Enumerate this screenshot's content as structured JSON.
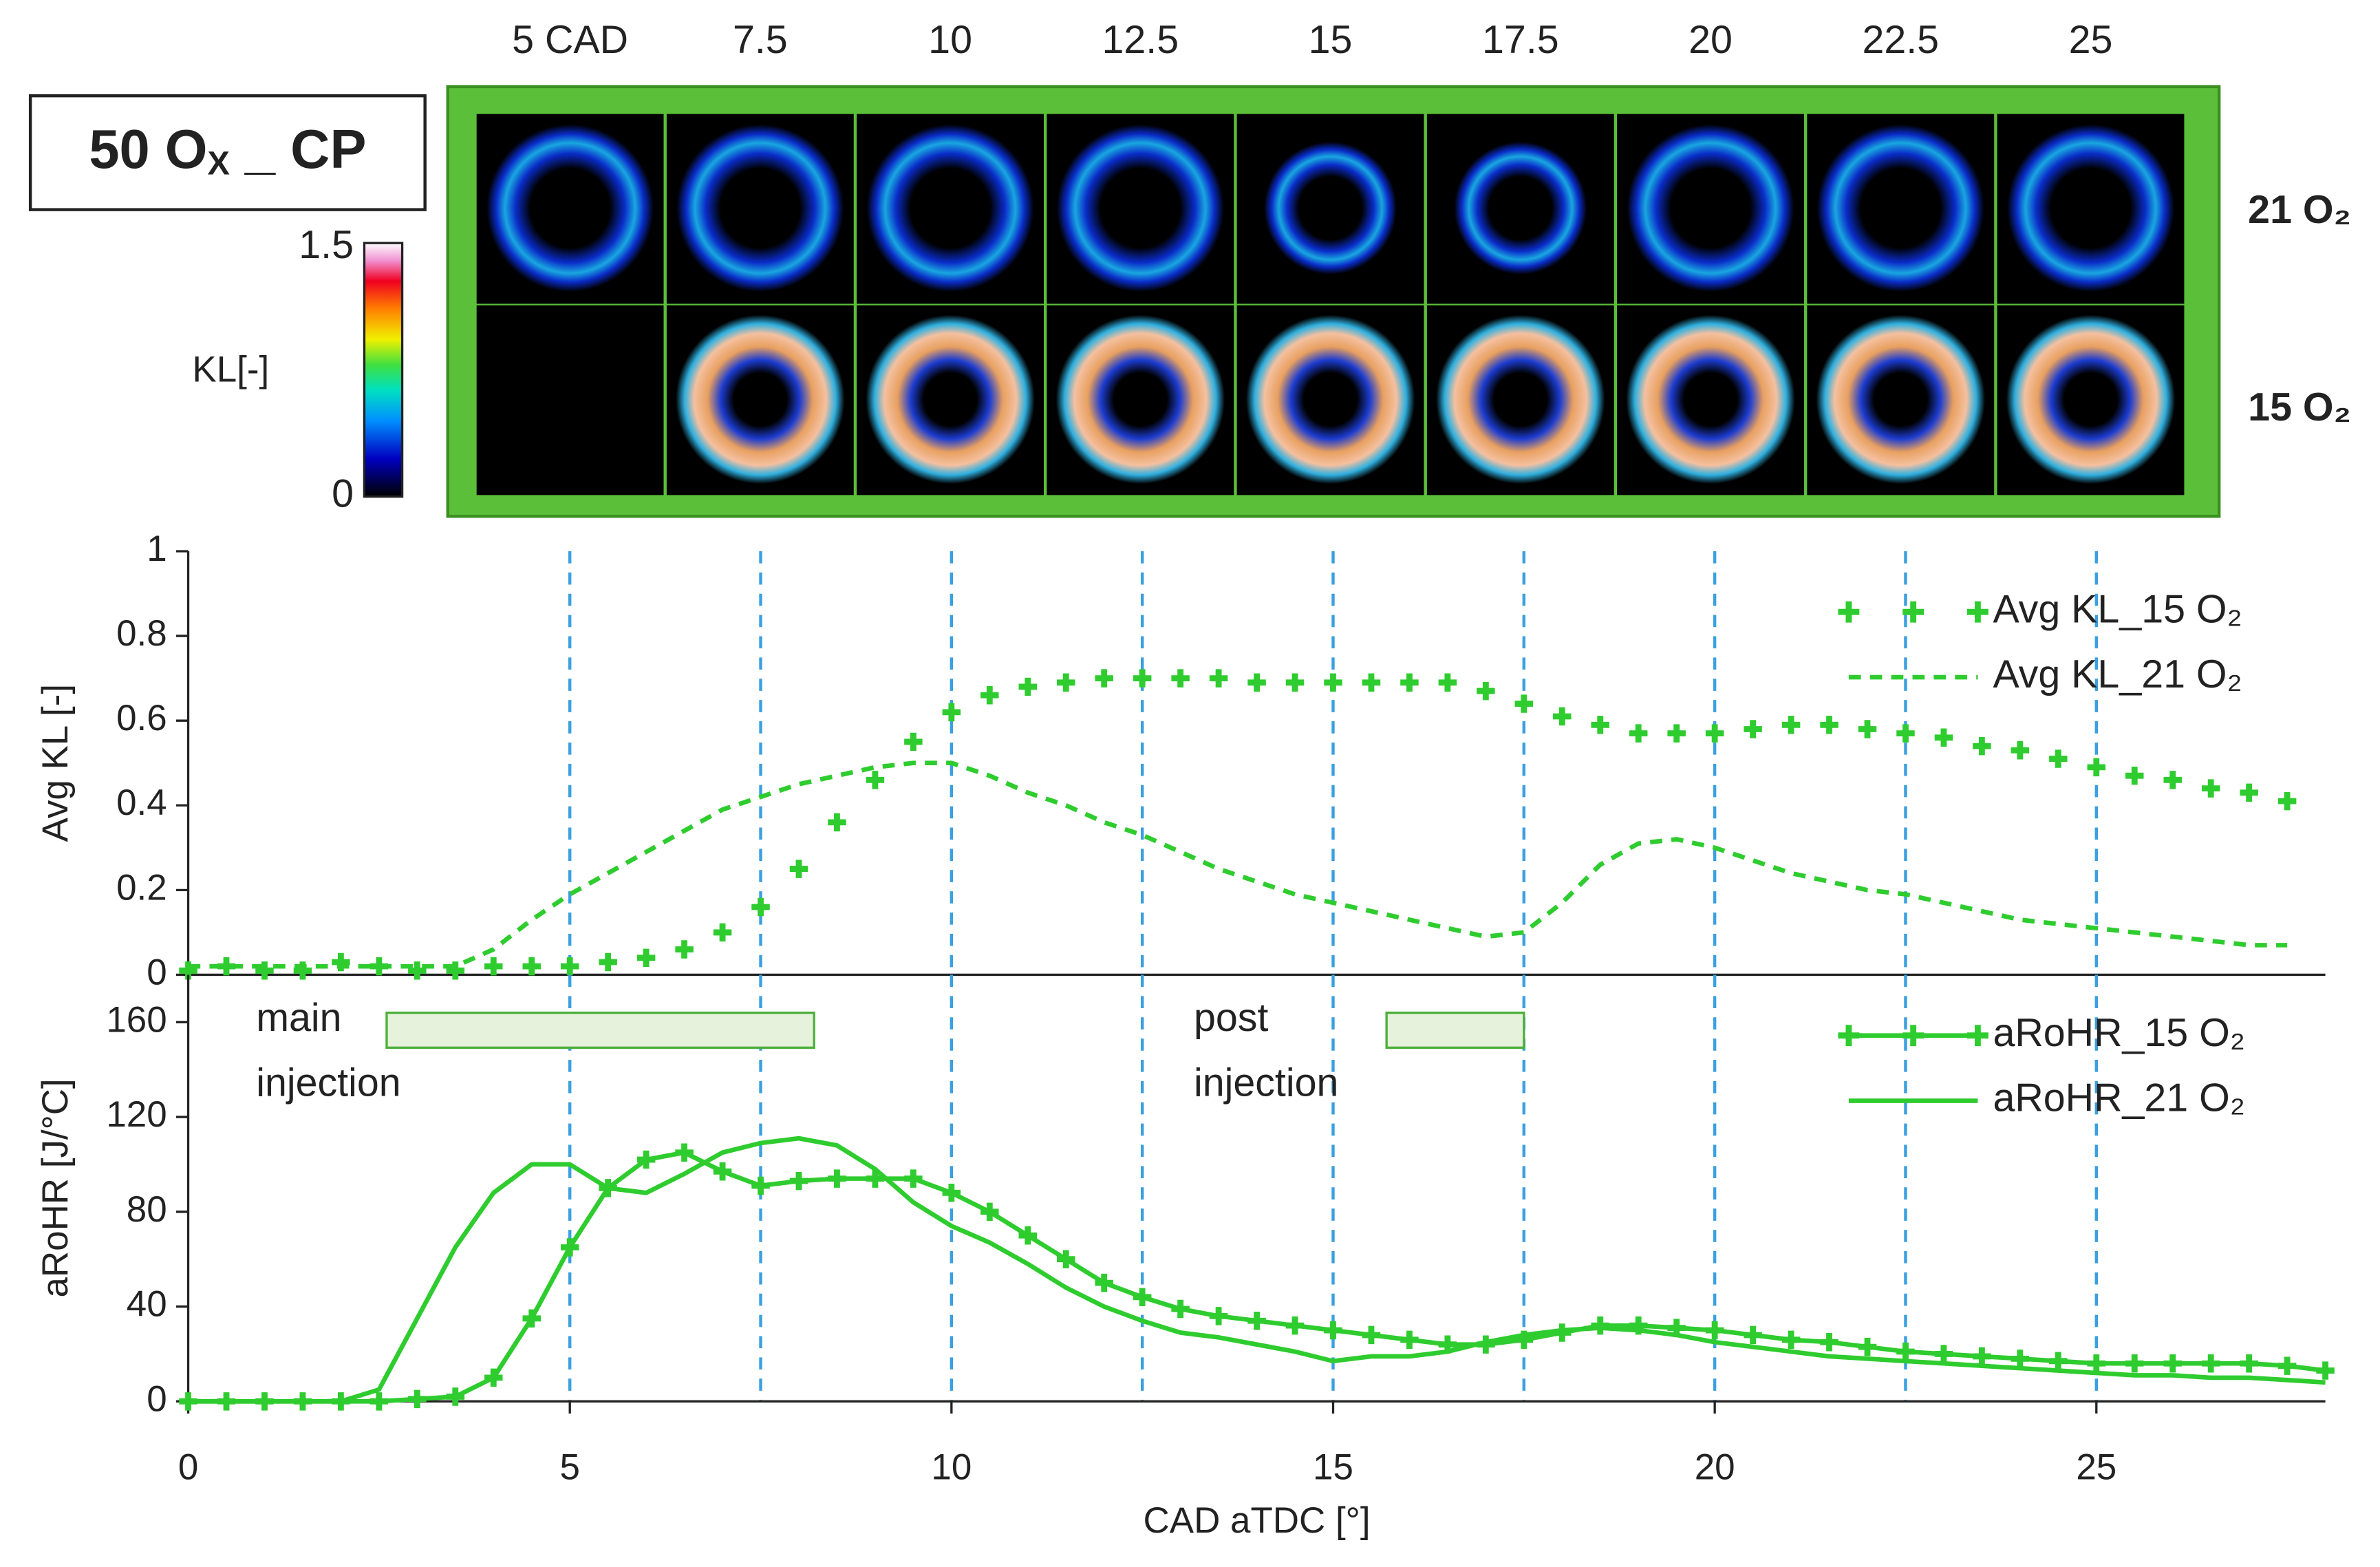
{
  "image_panel": {
    "title_parts": [
      "50 O",
      "X",
      " _ CP"
    ],
    "columns": [
      "5 CAD",
      "7.5",
      "10",
      "12.5",
      "15",
      "17.5",
      "20",
      "22.5",
      "25"
    ],
    "rows": [
      "21 O₂",
      "15 O₂"
    ],
    "colorbar": {
      "label": "KL[-]",
      "ticks": [
        0,
        1.5
      ]
    }
  },
  "chart_data": [
    {
      "type": "line",
      "ylabel": "Avg KL [-]",
      "x": [
        0,
        0.5,
        1,
        1.5,
        2,
        2.5,
        3,
        3.5,
        4,
        4.5,
        5,
        5.5,
        6,
        6.5,
        7,
        7.5,
        8,
        8.5,
        9,
        9.5,
        10,
        10.5,
        11,
        11.5,
        12,
        12.5,
        13,
        13.5,
        14,
        14.5,
        15,
        15.5,
        16,
        16.5,
        17,
        17.5,
        18,
        18.5,
        19,
        19.5,
        20,
        20.5,
        21,
        21.5,
        22,
        22.5,
        23,
        23.5,
        24,
        24.5,
        25,
        25.5,
        26,
        26.5,
        27,
        27.5
      ],
      "xlim": [
        0,
        28
      ],
      "ylim": [
        0,
        1
      ],
      "yticks": [
        0,
        0.2,
        0.4,
        0.6,
        0.8,
        1
      ],
      "vlines": [
        5,
        7.5,
        10,
        12.5,
        15,
        17.5,
        20,
        22.5,
        25
      ],
      "legend": "upper right",
      "series": [
        {
          "name": "Avg KL_15 O₂",
          "color": "#2ecc2e",
          "style": "markers",
          "values": [
            0.01,
            0.02,
            0.01,
            0.01,
            0.03,
            0.02,
            0.01,
            0.01,
            0.02,
            0.02,
            0.02,
            0.03,
            0.04,
            0.06,
            0.1,
            0.16,
            0.25,
            0.36,
            0.46,
            0.55,
            0.62,
            0.66,
            0.68,
            0.69,
            0.7,
            0.7,
            0.7,
            0.7,
            0.69,
            0.69,
            0.69,
            0.69,
            0.69,
            0.69,
            0.67,
            0.64,
            0.61,
            0.59,
            0.57,
            0.57,
            0.57,
            0.58,
            0.59,
            0.59,
            0.58,
            0.57,
            0.56,
            0.54,
            0.53,
            0.51,
            0.49,
            0.47,
            0.46,
            0.44,
            0.43,
            0.41
          ]
        },
        {
          "name": "Avg KL_21 O₂",
          "color": "#2ecc2e",
          "style": "dashed",
          "values": [
            0.02,
            0.02,
            0.02,
            0.02,
            0.02,
            0.02,
            0.02,
            0.02,
            0.06,
            0.13,
            0.19,
            0.24,
            0.29,
            0.34,
            0.39,
            0.42,
            0.45,
            0.47,
            0.49,
            0.5,
            0.5,
            0.47,
            0.43,
            0.4,
            0.36,
            0.33,
            0.29,
            0.25,
            0.22,
            0.19,
            0.17,
            0.15,
            0.13,
            0.11,
            0.09,
            0.1,
            0.17,
            0.26,
            0.31,
            0.32,
            0.3,
            0.27,
            0.24,
            0.22,
            0.2,
            0.19,
            0.17,
            0.15,
            0.13,
            0.12,
            0.11,
            0.1,
            0.09,
            0.08,
            0.07,
            0.07
          ]
        }
      ]
    },
    {
      "type": "line",
      "xlabel": "CAD aTDC [°]",
      "ylabel": "aRoHR [J/°C]",
      "x": [
        0,
        0.5,
        1,
        1.5,
        2,
        2.5,
        3,
        3.5,
        4,
        4.5,
        5,
        5.5,
        6,
        6.5,
        7,
        7.5,
        8,
        8.5,
        9,
        9.5,
        10,
        10.5,
        11,
        11.5,
        12,
        12.5,
        13,
        13.5,
        14,
        14.5,
        15,
        15.5,
        16,
        16.5,
        17,
        17.5,
        18,
        18.5,
        19,
        19.5,
        20,
        20.5,
        21,
        21.5,
        22,
        22.5,
        23,
        23.5,
        24,
        24.5,
        25,
        25.5,
        26,
        26.5,
        27,
        27.5,
        28
      ],
      "xlim": [
        0,
        28
      ],
      "xticks": [
        0,
        5,
        10,
        15,
        20,
        25
      ],
      "ylim": [
        0,
        180
      ],
      "yticks": [
        0,
        40,
        80,
        120,
        160
      ],
      "vlines": [
        5,
        7.5,
        10,
        12.5,
        15,
        17.5,
        20,
        22.5,
        25
      ],
      "legend": "upper right",
      "annotations": [
        {
          "lines": [
            "main",
            "injection"
          ],
          "span": [
            2.6,
            8.2
          ]
        },
        {
          "lines": [
            "post",
            "injection"
          ],
          "span": [
            15.7,
            17.5
          ]
        }
      ],
      "series": [
        {
          "name": "aRoHR_15 O₂",
          "color": "#2ecc2e",
          "style": "line+markers",
          "values": [
            0,
            0,
            0,
            0,
            0,
            0,
            1,
            2,
            10,
            35,
            65,
            90,
            102,
            105,
            97,
            91,
            93,
            94,
            94,
            94,
            88,
            80,
            70,
            60,
            50,
            44,
            39,
            36,
            34,
            32,
            30,
            28,
            26,
            24,
            24,
            26,
            29,
            32,
            32,
            31,
            30,
            28,
            26,
            25,
            23,
            21,
            20,
            19,
            18,
            17,
            16,
            16,
            16,
            16,
            16,
            15,
            13
          ]
        },
        {
          "name": "aRoHR_21 O₂",
          "color": "#2ecc2e",
          "style": "solid",
          "values": [
            0,
            0,
            0,
            0,
            0,
            5,
            35,
            65,
            88,
            100,
            100,
            90,
            88,
            96,
            105,
            109,
            111,
            108,
            98,
            84,
            74,
            67,
            58,
            48,
            40,
            34,
            29,
            27,
            24,
            21,
            17,
            19,
            19,
            21,
            25,
            28,
            30,
            31,
            30,
            28,
            25,
            23,
            21,
            19,
            18,
            17,
            16,
            15,
            14,
            13,
            12,
            11,
            11,
            10,
            10,
            9,
            8
          ]
        }
      ]
    }
  ]
}
